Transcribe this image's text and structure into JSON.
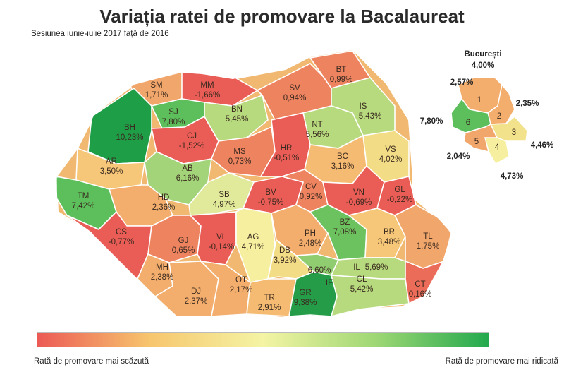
{
  "title": "Variația ratei de promovare la Bacalaureat",
  "subtitle": "Sesiunea iunie-iulie 2017 față de 2016",
  "legend": {
    "low_label": "Rată de promovare mai scăzută",
    "high_label": "Rată de promovare mai ridicată",
    "colors": [
      "#ec5a55",
      "#f7c66e",
      "#f4f4a4",
      "#9ed774",
      "#23a94e"
    ]
  },
  "counties": [
    {
      "code": "BH",
      "value": "10,23%",
      "color": "#1f9e48"
    },
    {
      "code": "SM",
      "value": "1,71%",
      "color": "#f1a66b"
    },
    {
      "code": "MM",
      "value": "-1,66%",
      "color": "#ea5c56"
    },
    {
      "code": "SJ",
      "value": "7,80%",
      "color": "#5cbf5c"
    },
    {
      "code": "CJ",
      "value": "-1,52%",
      "color": "#ea5c56"
    },
    {
      "code": "BN",
      "value": "5,45%",
      "color": "#b7da7e"
    },
    {
      "code": "SV",
      "value": "0,94%",
      "color": "#ee8360"
    },
    {
      "code": "BT",
      "value": "0,99%",
      "color": "#ee8360"
    },
    {
      "code": "IS",
      "value": "5,43%",
      "color": "#b7da7e"
    },
    {
      "code": "NT",
      "value": "5,56%",
      "color": "#b7da7e"
    },
    {
      "code": "AR",
      "value": "3,50%",
      "color": "#f6c778"
    },
    {
      "code": "BC",
      "value": "3,16%",
      "color": "#f5bb72"
    },
    {
      "code": "VS",
      "value": "4,02%",
      "color": "#f2dc85"
    },
    {
      "code": "MS",
      "value": "0,73%",
      "color": "#ee8360"
    },
    {
      "code": "HR",
      "value": "-0,51%",
      "color": "#ea5c56"
    },
    {
      "code": "AB",
      "value": "6,16%",
      "color": "#a3d47a"
    },
    {
      "code": "TM",
      "value": "7,42%",
      "color": "#5cbf5c"
    },
    {
      "code": "HD",
      "value": "2,36%",
      "color": "#f3ae6d"
    },
    {
      "code": "SB",
      "value": "4,97%",
      "color": "#e0ea9a"
    },
    {
      "code": "BV",
      "value": "-0,75%",
      "color": "#ea5c56"
    },
    {
      "code": "CV",
      "value": "0,92%",
      "color": "#ee8360"
    },
    {
      "code": "VN",
      "value": "-0,69%",
      "color": "#ea5c56"
    },
    {
      "code": "GL",
      "value": "-0,22%",
      "color": "#ea5c56"
    },
    {
      "code": "CS",
      "value": "-0,77%",
      "color": "#ea5c56"
    },
    {
      "code": "GJ",
      "value": "0,65%",
      "color": "#ee8360"
    },
    {
      "code": "VL",
      "value": "-0,14%",
      "color": "#ea5c56"
    },
    {
      "code": "AG",
      "value": "4,71%",
      "color": "#f5ef9f"
    },
    {
      "code": "PH",
      "value": "2,48%",
      "color": "#f3ae6d"
    },
    {
      "code": "BZ",
      "value": "7,08%",
      "color": "#6cc25e"
    },
    {
      "code": "BR",
      "value": "3,48%",
      "color": "#f6c778"
    },
    {
      "code": "TL",
      "value": "1,75%",
      "color": "#f1a66b"
    },
    {
      "code": "DB",
      "value": "3,92%",
      "color": "#f2dc85"
    },
    {
      "code": "MH",
      "value": "2,38%",
      "color": "#f3ae6d"
    },
    {
      "code": "DJ",
      "value": "2,37%",
      "color": "#f3ae6d"
    },
    {
      "code": "OT",
      "value": "2,17%",
      "color": "#f3ae6d"
    },
    {
      "code": "TR",
      "value": "2,91%",
      "color": "#f5bb72"
    },
    {
      "code": "IF",
      "value": "6,60%",
      "color": "#8fcd70"
    },
    {
      "code": "IL",
      "value": "5,69%",
      "color": "#b7da7e"
    },
    {
      "code": "GR",
      "value": "9,38%",
      "color": "#249c48"
    },
    {
      "code": "CL",
      "value": "5,42%",
      "color": "#b7da7e"
    },
    {
      "code": "CT",
      "value": "0,16%",
      "color": "#ec6c5a"
    }
  ],
  "bucharest": {
    "title": "București",
    "total": "4,00%",
    "sectors": [
      {
        "number": "1",
        "value": "2,57%",
        "color": "#f3ae6d"
      },
      {
        "number": "2",
        "value": "2,35%",
        "color": "#f3ae6d"
      },
      {
        "number": "3",
        "value": "4,46%",
        "color": "#f2e28c"
      },
      {
        "number": "4",
        "value": "4,73%",
        "color": "#f5ef9f"
      },
      {
        "number": "5",
        "value": "2,04%",
        "color": "#f1a66b"
      },
      {
        "number": "6",
        "value": "7,80%",
        "color": "#5cbf5c"
      }
    ]
  }
}
